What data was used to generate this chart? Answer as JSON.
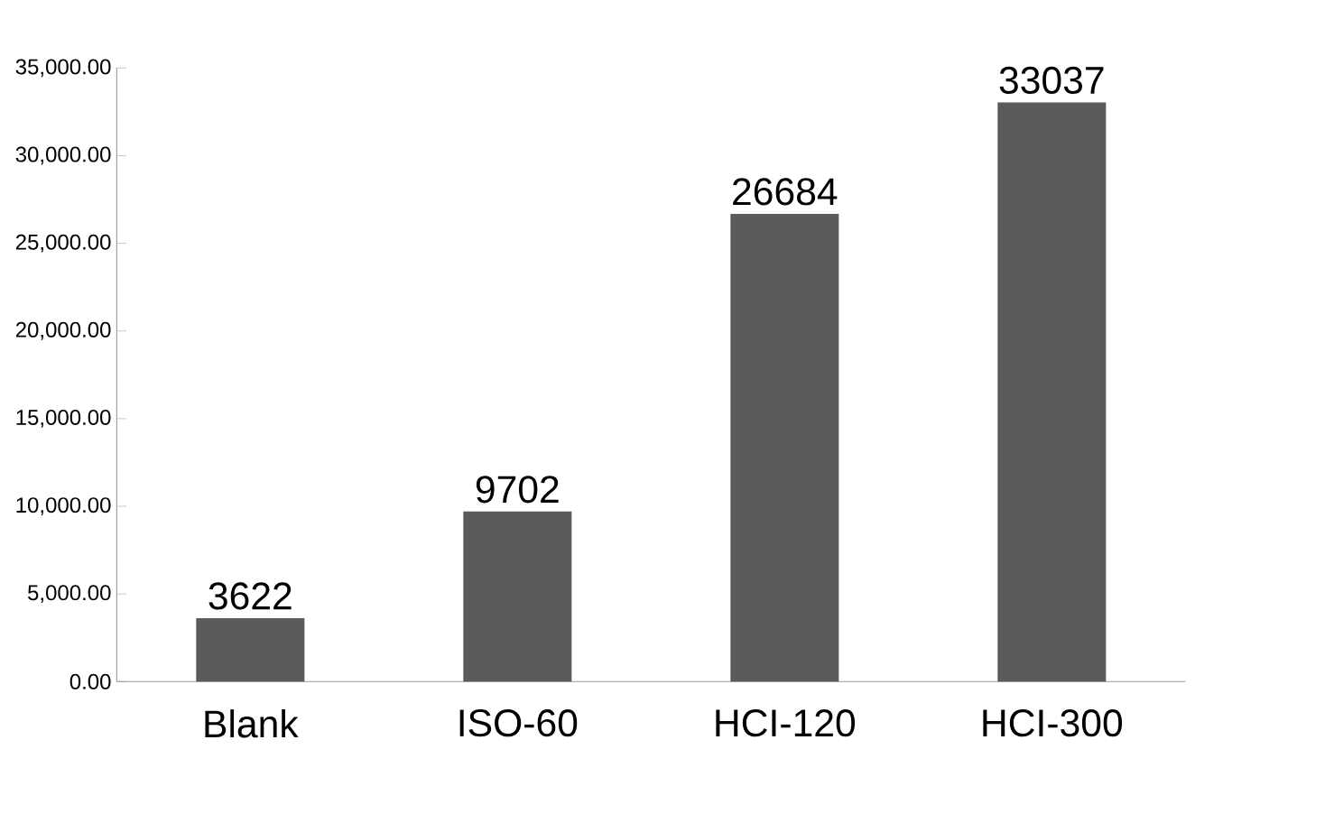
{
  "chart_data": {
    "type": "bar",
    "categories": [
      "Blank",
      "ISO-60",
      "HCI-120",
      "HCI-300"
    ],
    "values": [
      3622,
      9702,
      26684,
      33037
    ],
    "color": "#5a5a5a",
    "ylim": [
      0,
      35000
    ],
    "yticks": [
      {
        "value": 0,
        "label": "0.00"
      },
      {
        "value": 5000,
        "label": "5,000.00"
      },
      {
        "value": 10000,
        "label": "10,000.00"
      },
      {
        "value": 15000,
        "label": "15,000.00"
      },
      {
        "value": 20000,
        "label": "20,000.00"
      },
      {
        "value": 25000,
        "label": "25,000.00"
      },
      {
        "value": 30000,
        "label": "30,000.00"
      },
      {
        "value": 35000,
        "label": "35,000.00"
      }
    ],
    "data_labels": true
  }
}
